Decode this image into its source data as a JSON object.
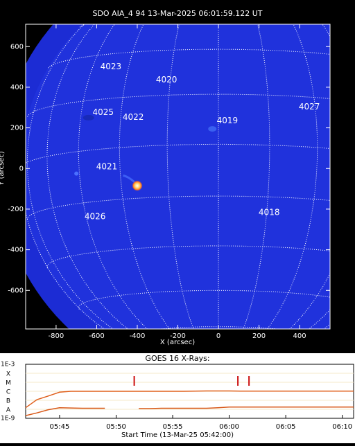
{
  "chart_data": [
    {
      "type": "image",
      "title": "SDO AIA_4 94 13-Mar-2025 06:01:59.122 UT",
      "xlabel": "X (arcsec)",
      "ylabel": "Y (arcsec)",
      "xlim": [
        -950,
        550
      ],
      "ylim": [
        -790,
        710
      ],
      "xticks": [
        -800,
        -600,
        -400,
        -200,
        0,
        200,
        400
      ],
      "yticks": [
        -600,
        -400,
        -200,
        0,
        200,
        400,
        600
      ],
      "regions": [
        {
          "label": "4023",
          "x": -530,
          "y": 500
        },
        {
          "label": "4020",
          "x": -256,
          "y": 435
        },
        {
          "label": "4025",
          "x": -568,
          "y": 275
        },
        {
          "label": "4022",
          "x": -420,
          "y": 252
        },
        {
          "label": "4019",
          "x": 44,
          "y": 235
        },
        {
          "label": "4027",
          "x": 448,
          "y": 303
        },
        {
          "label": "4021",
          "x": -550,
          "y": 7
        },
        {
          "label": "4026",
          "x": -608,
          "y": -238
        },
        {
          "label": "4018",
          "x": 250,
          "y": -218
        }
      ]
    },
    {
      "type": "line",
      "title": "GOES 16 X-Rays:",
      "xlabel": "Start Time (13-Mar-25 05:42:00)",
      "log_scale": true,
      "grid": true,
      "xlim": [
        "05:42",
        "06:11"
      ],
      "xticks": [
        "05:45",
        "05:50",
        "05:55",
        "06:00",
        "06:05",
        "06:10"
      ],
      "ylim": [
        1e-09,
        0.001
      ],
      "yticks": [
        {
          "value": 0.001,
          "label": "1E-3"
        },
        {
          "value": 1e-09,
          "label": "1E-9"
        }
      ],
      "class_labels": [
        {
          "value": 0.0001,
          "label": "X"
        },
        {
          "value": 1e-05,
          "label": "M"
        },
        {
          "value": 1e-06,
          "label": "C"
        },
        {
          "value": 1e-07,
          "label": "B"
        },
        {
          "value": 1e-08,
          "label": "A"
        }
      ],
      "x": [
        "05:42",
        "05:43",
        "05:44",
        "05:45",
        "05:46",
        "05:47",
        "05:48",
        "05:49",
        "05:50",
        "05:51",
        "05:52",
        "05:53",
        "05:54",
        "05:55",
        "05:56",
        "05:57",
        "05:58",
        "05:59",
        "06:00",
        "06:01",
        "06:02",
        "06:03",
        "06:04",
        "06:05",
        "06:06",
        "06:07",
        "06:08",
        "06:09",
        "06:10",
        "06:11"
      ],
      "series": [
        {
          "color": "#e0601c",
          "values": [
            1.5e-08,
            1.2e-07,
            3e-07,
            8e-07,
            1e-06,
            1e-06,
            1e-06,
            1e-06,
            1e-06,
            1e-06,
            1e-06,
            1e-06,
            1e-06,
            1e-06,
            1e-06,
            1.05e-06,
            1.1e-06,
            1.1e-06,
            1.1e-06,
            1.05e-06,
            1.05e-06,
            1.05e-06,
            1.05e-06,
            1.05e-06,
            1.05e-06,
            1.05e-06,
            1.05e-06,
            1.05e-06,
            1.05e-06,
            1.05e-06
          ]
        },
        {
          "color": "#d85818",
          "values": [
            2e-09,
            4e-09,
            9e-09,
            1.5e-08,
            1.4e-08,
            1.3e-08,
            1.3e-08,
            1.3e-08,
            null,
            null,
            1.2e-08,
            1.2e-08,
            1.3e-08,
            1.3e-08,
            1.3e-08,
            1.3e-08,
            1.3e-08,
            1.5e-08,
            1.8e-08,
            1.8e-08,
            1.8e-08,
            1.8e-08,
            1.8e-08,
            1.8e-08,
            1.8e-08,
            1.8e-08,
            1.8e-08,
            1.8e-08,
            1.8e-08,
            1.8e-08
          ]
        }
      ],
      "events": [
        "05:51:36",
        "06:00:46",
        "06:01:45"
      ],
      "event_color": "#cc1010"
    }
  ]
}
